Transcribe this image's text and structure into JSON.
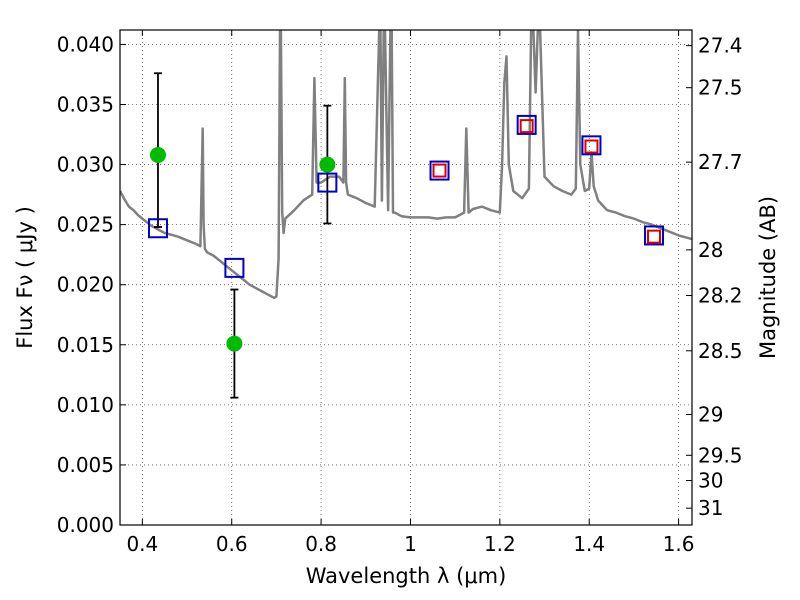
{
  "chart_data": {
    "type": "scatter",
    "xlabel": "Wavelength  λ (μm)",
    "ylabel": "Flux  Fν  ( μJy )",
    "y2label": "Magnitude (AB)",
    "xlim": [
      0.35,
      1.63
    ],
    "ylim": [
      0.0,
      0.0412
    ],
    "grid": true,
    "x_ticks": [
      0.4,
      0.6,
      0.8,
      1.0,
      1.2,
      1.4,
      1.6
    ],
    "x_tick_labels": [
      "0.4",
      "0.6",
      "0.8",
      "1",
      "1.2",
      "1.4",
      "1.6"
    ],
    "y_ticks": [
      0.0,
      0.005,
      0.01,
      0.015,
      0.02,
      0.025,
      0.03,
      0.035,
      0.04
    ],
    "y_tick_labels": [
      "0.000",
      "0.005",
      "0.010",
      "0.015",
      "0.020",
      "0.025",
      "0.030",
      "0.035",
      "0.040"
    ],
    "mag_ticks": [
      {
        "label": "27.4",
        "flux": 0.0399
      },
      {
        "label": "27.5",
        "flux": 0.0364
      },
      {
        "label": "27.7",
        "flux": 0.0302
      },
      {
        "label": "28",
        "flux": 0.0229
      },
      {
        "label": "28.2",
        "flux": 0.0191
      },
      {
        "label": "28.5",
        "flux": 0.0145
      },
      {
        "label": "29",
        "flux": 0.0092
      },
      {
        "label": "29.5",
        "flux": 0.0058
      },
      {
        "label": "30",
        "flux": 0.0037
      },
      {
        "label": "31",
        "flux": 0.0014
      }
    ],
    "series": [
      {
        "kind": "spectrum",
        "color": "#808080",
        "x": [
          0.35,
          0.36,
          0.37,
          0.38,
          0.39,
          0.4,
          0.41,
          0.42,
          0.43,
          0.44,
          0.45,
          0.46,
          0.48,
          0.5,
          0.52,
          0.53,
          0.535,
          0.537,
          0.54,
          0.545,
          0.56,
          0.58,
          0.6,
          0.62,
          0.64,
          0.66,
          0.68,
          0.69,
          0.695,
          0.7,
          0.705,
          0.708,
          0.71,
          0.713,
          0.716,
          0.72,
          0.74,
          0.76,
          0.78,
          0.785,
          0.79,
          0.8,
          0.82,
          0.84,
          0.85,
          0.853,
          0.856,
          0.86,
          0.88,
          0.9,
          0.92,
          0.93,
          0.933,
          0.936,
          0.94,
          0.943,
          0.95,
          0.955,
          0.958,
          0.961,
          0.965,
          0.98,
          1.0,
          1.02,
          1.04,
          1.06,
          1.08,
          1.1,
          1.12,
          1.125,
          1.13,
          1.14,
          1.16,
          1.18,
          1.2,
          1.205,
          1.21,
          1.215,
          1.22,
          1.23,
          1.25,
          1.265,
          1.27,
          1.275,
          1.28,
          1.285,
          1.29,
          1.3,
          1.32,
          1.34,
          1.36,
          1.37,
          1.375,
          1.38,
          1.39,
          1.4,
          1.405,
          1.41,
          1.42,
          1.44,
          1.46,
          1.48,
          1.5,
          1.52,
          1.54,
          1.56,
          1.58,
          1.6,
          1.63
        ],
        "y": [
          0.0278,
          0.0271,
          0.0265,
          0.0262,
          0.0258,
          0.0255,
          0.0252,
          0.0249,
          0.0247,
          0.0245,
          0.0243,
          0.0242,
          0.024,
          0.0237,
          0.0234,
          0.0232,
          0.033,
          0.025,
          0.023,
          0.0227,
          0.0224,
          0.0218,
          0.0212,
          0.0206,
          0.02,
          0.0196,
          0.0192,
          0.019,
          0.0189,
          0.019,
          0.0222,
          0.0412,
          0.0412,
          0.026,
          0.0243,
          0.0255,
          0.0262,
          0.027,
          0.0275,
          0.0372,
          0.0285,
          0.0285,
          0.029,
          0.029,
          0.0285,
          0.0372,
          0.0285,
          0.0275,
          0.0272,
          0.0268,
          0.0265,
          0.0412,
          0.0412,
          0.027,
          0.0412,
          0.0412,
          0.0262,
          0.0412,
          0.0412,
          0.026,
          0.026,
          0.0257,
          0.0256,
          0.0256,
          0.0256,
          0.0255,
          0.0256,
          0.0256,
          0.026,
          0.033,
          0.026,
          0.0263,
          0.0265,
          0.0262,
          0.026,
          0.03,
          0.0368,
          0.039,
          0.03,
          0.0278,
          0.0272,
          0.028,
          0.0412,
          0.0412,
          0.036,
          0.0412,
          0.0412,
          0.029,
          0.0282,
          0.0278,
          0.0275,
          0.028,
          0.0412,
          0.03,
          0.0278,
          0.028,
          0.031,
          0.0282,
          0.027,
          0.0262,
          0.026,
          0.0257,
          0.0255,
          0.0252,
          0.025,
          0.0247,
          0.0244,
          0.0241,
          0.0238
        ]
      },
      {
        "kind": "observed",
        "marker": "filled-circle",
        "color": "#00bb00",
        "errorbar_color": "#000000",
        "x": [
          0.435,
          0.606,
          0.814
        ],
        "y": [
          0.0308,
          0.0151,
          0.03
        ],
        "yerr_low": [
          0.0248,
          0.0106,
          0.0251
        ],
        "yerr_high": [
          0.0376,
          0.0196,
          0.0349
        ]
      },
      {
        "kind": "model",
        "marker": "open-square",
        "color": "#0000cc",
        "x": [
          0.435,
          0.606,
          0.814,
          1.065,
          1.26,
          1.405,
          1.545
        ],
        "y": [
          0.0247,
          0.0214,
          0.0285,
          0.0295,
          0.0333,
          0.0316,
          0.0241
        ]
      },
      {
        "kind": "observed-ir",
        "marker": "open-square",
        "color": "#dd0000",
        "x": [
          1.065,
          1.26,
          1.405,
          1.545
        ],
        "y": [
          0.0295,
          0.0332,
          0.0315,
          0.024
        ]
      }
    ]
  }
}
